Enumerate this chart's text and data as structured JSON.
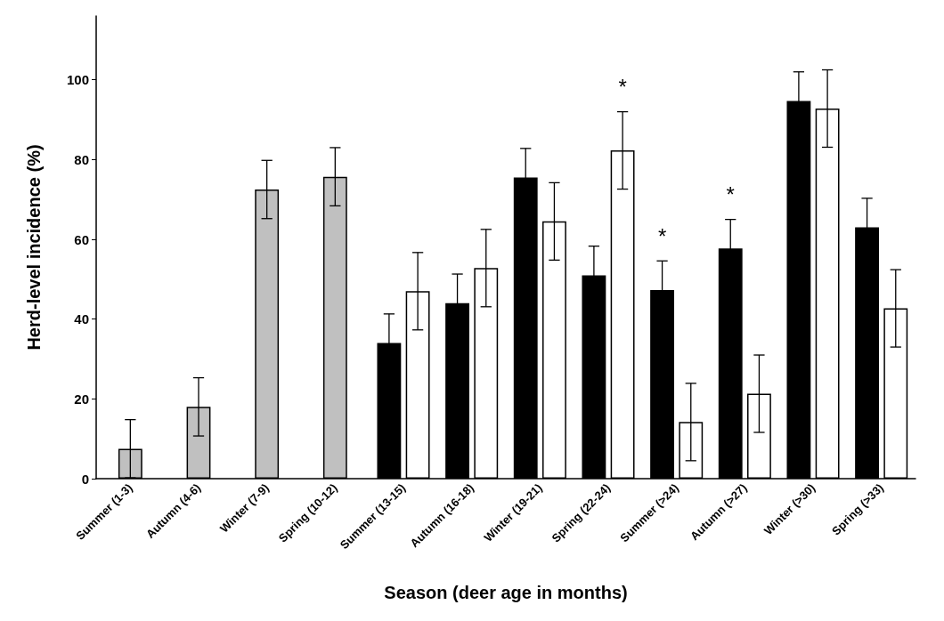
{
  "chart_data": {
    "type": "bar",
    "xlabel": "Season (deer age in months)",
    "ylabel": "Herd-level incidence (%)",
    "categories": [
      "Summer (1-3)",
      "Autumn (4-6)",
      "Winter (7-9)",
      "Spring (10-12)",
      "Summer (13-15)",
      "Autumn (16-18)",
      "Winter (19-21)",
      "Spring (22-24)",
      "Summer (>24)",
      "Autumn (>27)",
      "Winter (>30)",
      "Spring (>33)"
    ],
    "series": [
      {
        "color": "#c0c0c0",
        "values": [
          7.5,
          18,
          72.5,
          75.7,
          null,
          null,
          null,
          null,
          null,
          null,
          null,
          null
        ],
        "errors": [
          7.3,
          7.3,
          7.3,
          7.3,
          null,
          null,
          null,
          null,
          null,
          null,
          null,
          null
        ]
      },
      {
        "color": "#000000",
        "values": [
          null,
          null,
          null,
          null,
          34,
          44,
          75.5,
          51,
          47.3,
          57.7,
          94.7,
          63
        ],
        "errors": [
          null,
          null,
          null,
          null,
          7.3,
          7.3,
          7.3,
          7.3,
          7.3,
          7.3,
          7.3,
          7.3
        ]
      },
      {
        "color": "#ffffff",
        "values": [
          null,
          null,
          null,
          null,
          47,
          52.8,
          64.5,
          82.3,
          14.2,
          21.3,
          92.8,
          42.7
        ],
        "errors": [
          null,
          null,
          null,
          null,
          9.7,
          9.7,
          9.7,
          9.7,
          9.7,
          9.7,
          9.7,
          9.7
        ]
      }
    ],
    "ylim": [
      0,
      116
    ],
    "yticks": [
      0,
      20,
      40,
      60,
      80,
      100
    ],
    "annotations": [
      {
        "text": "*",
        "x": "Spring (22-24)",
        "y": 82.3
      },
      {
        "text": "*",
        "x": "Summer (>24)",
        "y": 47.3
      },
      {
        "text": "*",
        "x": "Autumn (>27)",
        "y": 57.7
      }
    ]
  }
}
